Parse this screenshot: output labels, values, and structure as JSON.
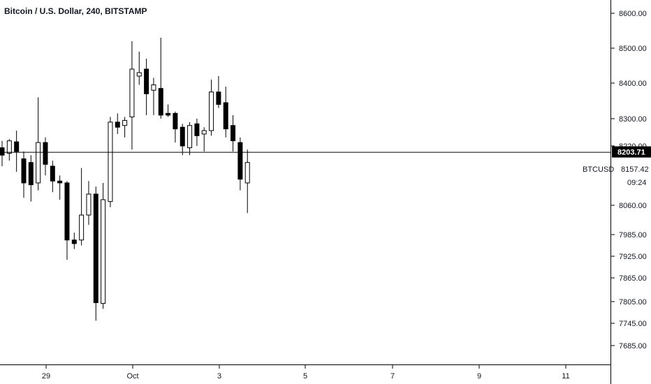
{
  "title": "Bitcoin / U.S. Dollar, 240, BITSTAMP",
  "symbol_label": "BTCUSD",
  "current_price_label": "8203.71",
  "symbol_price": "8157.42",
  "countdown": "09:24",
  "colors": {
    "up_body": "#ffffff",
    "down_body": "#000000",
    "wick": "#000000",
    "price_line": "#000000",
    "label_bg": "#000000"
  },
  "chart_data": {
    "type": "candlestick",
    "title": "Bitcoin / U.S. Dollar, 240, BITSTAMP",
    "xlabel": "",
    "ylabel": "",
    "ylim": [
      7640,
      8620
    ],
    "y_axis_scale": "log",
    "x_ticks": [
      "29",
      "Oct",
      "3",
      "5",
      "7",
      "9",
      "11"
    ],
    "y_ticks": [
      "8600.00",
      "8500.00",
      "8400.00",
      "8300.00",
      "8220.00",
      "8060.00",
      "7985.00",
      "7925.00",
      "7865.00",
      "7805.00",
      "7745.00",
      "7685.00"
    ],
    "current_price": 8203.71,
    "candles": [
      {
        "o": 8215,
        "h": 8235,
        "l": 8165,
        "c": 8195
      },
      {
        "o": 8200,
        "h": 8240,
        "l": 8180,
        "c": 8235
      },
      {
        "o": 8232,
        "h": 8265,
        "l": 8150,
        "c": 8205
      },
      {
        "o": 8185,
        "h": 8205,
        "l": 8080,
        "c": 8120
      },
      {
        "o": 8175,
        "h": 8195,
        "l": 8070,
        "c": 8115
      },
      {
        "o": 8120,
        "h": 8360,
        "l": 8100,
        "c": 8230
      },
      {
        "o": 8230,
        "h": 8245,
        "l": 8140,
        "c": 8170
      },
      {
        "o": 8165,
        "h": 8180,
        "l": 8095,
        "c": 8125
      },
      {
        "o": 8125,
        "h": 8140,
        "l": 8075,
        "c": 8120
      },
      {
        "o": 8120,
        "h": 8125,
        "l": 7915,
        "c": 7970
      },
      {
        "o": 7970,
        "h": 7990,
        "l": 7945,
        "c": 7960
      },
      {
        "o": 7970,
        "h": 8160,
        "l": 7955,
        "c": 8035
      },
      {
        "o": 8035,
        "h": 8125,
        "l": 8010,
        "c": 8090
      },
      {
        "o": 8090,
        "h": 8110,
        "l": 7752,
        "c": 7802
      },
      {
        "o": 7800,
        "h": 8120,
        "l": 7785,
        "c": 8075
      },
      {
        "o": 8070,
        "h": 8305,
        "l": 8055,
        "c": 8290
      },
      {
        "o": 8290,
        "h": 8315,
        "l": 8255,
        "c": 8275
      },
      {
        "o": 8280,
        "h": 8305,
        "l": 8245,
        "c": 8295
      },
      {
        "o": 8305,
        "h": 8520,
        "l": 8210,
        "c": 8440
      },
      {
        "o": 8420,
        "h": 8490,
        "l": 8395,
        "c": 8430
      },
      {
        "o": 8440,
        "h": 8470,
        "l": 8310,
        "c": 8370
      },
      {
        "o": 8380,
        "h": 8415,
        "l": 8310,
        "c": 8395
      },
      {
        "o": 8385,
        "h": 8530,
        "l": 8300,
        "c": 8310
      },
      {
        "o": 8315,
        "h": 8340,
        "l": 8305,
        "c": 8310
      },
      {
        "o": 8315,
        "h": 8320,
        "l": 8230,
        "c": 8270
      },
      {
        "o": 8275,
        "h": 8285,
        "l": 8195,
        "c": 8220
      },
      {
        "o": 8215,
        "h": 8290,
        "l": 8195,
        "c": 8280
      },
      {
        "o": 8285,
        "h": 8300,
        "l": 8220,
        "c": 8250
      },
      {
        "o": 8255,
        "h": 8275,
        "l": 8205,
        "c": 8265
      },
      {
        "o": 8265,
        "h": 8410,
        "l": 8250,
        "c": 8375
      },
      {
        "o": 8375,
        "h": 8420,
        "l": 8330,
        "c": 8340
      },
      {
        "o": 8345,
        "h": 8390,
        "l": 8245,
        "c": 8270
      },
      {
        "o": 8280,
        "h": 8310,
        "l": 8205,
        "c": 8235
      },
      {
        "o": 8230,
        "h": 8245,
        "l": 8100,
        "c": 8130
      },
      {
        "o": 8120,
        "h": 8210,
        "l": 8040,
        "c": 8175
      }
    ]
  }
}
